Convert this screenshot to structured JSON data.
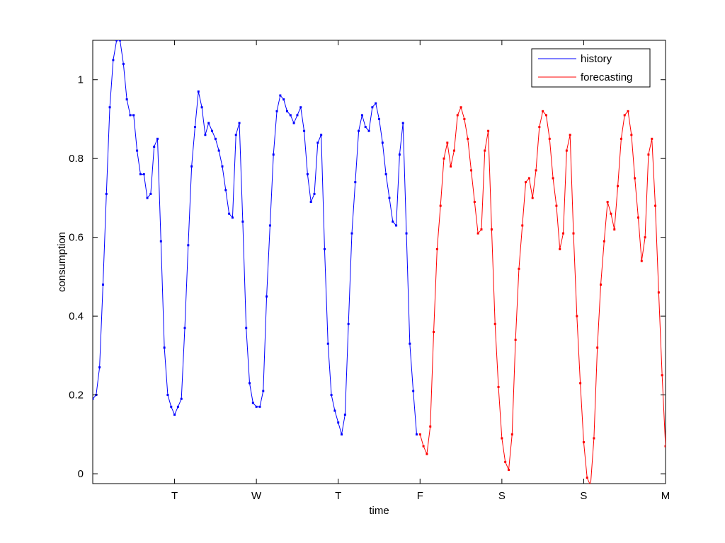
{
  "chart_data": {
    "type": "line",
    "title": "",
    "xlabel": "time",
    "ylabel": "consumption",
    "xlim": [
      0,
      168
    ],
    "ylim": [
      -0.025,
      1.1
    ],
    "grid": false,
    "legend_position": "top-right",
    "x_ticks": [
      {
        "value": 24,
        "label": "T"
      },
      {
        "value": 48,
        "label": "W"
      },
      {
        "value": 72,
        "label": "T"
      },
      {
        "value": 96,
        "label": "F"
      },
      {
        "value": 120,
        "label": "S"
      },
      {
        "value": 144,
        "label": "S"
      },
      {
        "value": 168,
        "label": "M"
      }
    ],
    "y_ticks": [
      {
        "value": 0,
        "label": "0"
      },
      {
        "value": 0.2,
        "label": "0.2"
      },
      {
        "value": 0.4,
        "label": "0.4"
      },
      {
        "value": 0.6,
        "label": "0.6"
      },
      {
        "value": 0.8,
        "label": "0.8"
      },
      {
        "value": 1,
        "label": "1"
      }
    ],
    "series": [
      {
        "name": "history",
        "color": "#0000ff",
        "x_start": 0,
        "x_step": 1,
        "values": [
          0.19,
          0.2,
          0.27,
          0.48,
          0.71,
          0.93,
          1.05,
          1.1,
          1.1,
          1.04,
          0.95,
          0.91,
          0.91,
          0.82,
          0.76,
          0.76,
          0.7,
          0.71,
          0.83,
          0.85,
          0.59,
          0.32,
          0.2,
          0.17,
          0.15,
          0.17,
          0.19,
          0.37,
          0.58,
          0.78,
          0.88,
          0.97,
          0.93,
          0.86,
          0.89,
          0.87,
          0.85,
          0.82,
          0.78,
          0.72,
          0.66,
          0.65,
          0.86,
          0.89,
          0.64,
          0.37,
          0.23,
          0.18,
          0.17,
          0.17,
          0.21,
          0.45,
          0.63,
          0.81,
          0.92,
          0.96,
          0.95,
          0.92,
          0.91,
          0.89,
          0.91,
          0.93,
          0.87,
          0.76,
          0.69,
          0.71,
          0.84,
          0.86,
          0.57,
          0.33,
          0.2,
          0.16,
          0.13,
          0.1,
          0.15,
          0.38,
          0.61,
          0.74,
          0.87,
          0.91,
          0.88,
          0.87,
          0.93,
          0.94,
          0.9,
          0.84,
          0.76,
          0.7,
          0.64,
          0.63,
          0.81,
          0.89,
          0.61,
          0.33,
          0.21,
          0.1
        ]
      },
      {
        "name": "forecasting",
        "color": "#ff0000",
        "x_start": 96,
        "x_step": 1,
        "values": [
          0.1,
          0.07,
          0.05,
          0.12,
          0.36,
          0.57,
          0.68,
          0.8,
          0.84,
          0.78,
          0.82,
          0.91,
          0.93,
          0.9,
          0.85,
          0.77,
          0.69,
          0.61,
          0.62,
          0.82,
          0.87,
          0.62,
          0.38,
          0.22,
          0.09,
          0.03,
          0.01,
          0.1,
          0.34,
          0.52,
          0.63,
          0.74,
          0.75,
          0.7,
          0.77,
          0.88,
          0.92,
          0.91,
          0.85,
          0.75,
          0.68,
          0.57,
          0.61,
          0.82,
          0.86,
          0.61,
          0.4,
          0.23,
          0.08,
          -0.01,
          -0.03,
          0.09,
          0.32,
          0.48,
          0.59,
          0.69,
          0.66,
          0.62,
          0.73,
          0.85,
          0.91,
          0.92,
          0.86,
          0.75,
          0.65,
          0.54,
          0.6,
          0.81,
          0.85,
          0.68,
          0.46,
          0.25,
          0.07
        ]
      }
    ]
  }
}
